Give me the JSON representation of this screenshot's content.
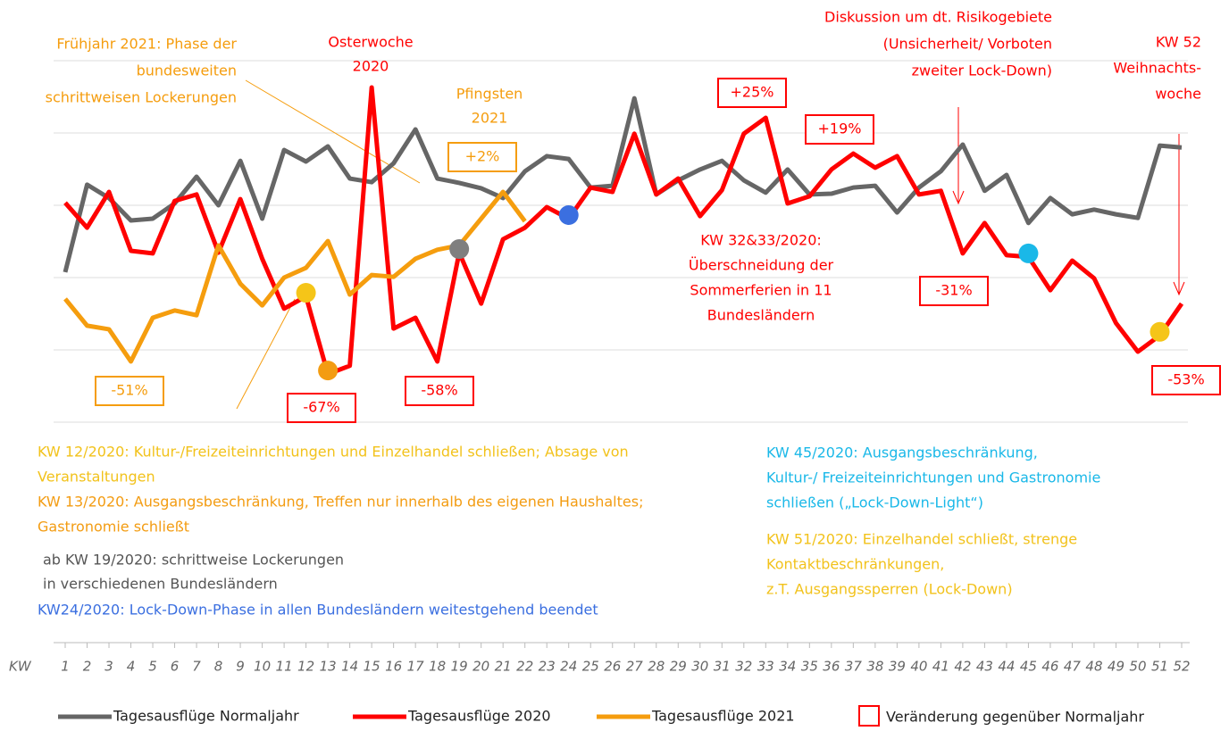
{
  "chart_data": {
    "type": "line",
    "x": [
      1,
      2,
      3,
      4,
      5,
      6,
      7,
      8,
      9,
      10,
      11,
      12,
      13,
      14,
      15,
      16,
      17,
      18,
      19,
      20,
      21,
      22,
      23,
      24,
      25,
      26,
      27,
      28,
      29,
      30,
      31,
      32,
      33,
      34,
      35,
      36,
      37,
      38,
      39,
      40,
      41,
      42,
      43,
      44,
      45,
      46,
      47,
      48,
      49,
      50,
      51,
      52
    ],
    "x_axis_label": "KW",
    "ylim": [
      0,
      100
    ],
    "yticks": [
      0,
      20,
      40,
      60,
      80,
      100
    ],
    "grid": true,
    "series": [
      {
        "name": "Tagesausflüge Normaljahr",
        "color": "#666666",
        "values": [
          41.5,
          65.7,
          62.0,
          55.8,
          56.3,
          60.5,
          67.9,
          60.0,
          72.3,
          56.3,
          75.3,
          72.1,
          76.3,
          67.4,
          66.4,
          71.6,
          81.0,
          67.4,
          66.2,
          64.7,
          62.0,
          69.4,
          73.6,
          72.8,
          64.9,
          65.4,
          89.6,
          63.0,
          66.9,
          69.9,
          72.3,
          66.9,
          63.5,
          69.9,
          63.0,
          63.2,
          64.9,
          65.4,
          58.0,
          64.9,
          69.4,
          76.8,
          64.0,
          68.4,
          55.1,
          62.0,
          57.5,
          58.8,
          57.5,
          56.5,
          76.5,
          76.0
        ]
      },
      {
        "name": "Tagesausflüge  2020",
        "color": "#ff0000",
        "values": [
          60.7,
          53.8,
          63.7,
          47.4,
          46.7,
          61.2,
          63.0,
          46.9,
          61.7,
          45.2,
          31.4,
          34.8,
          13.3,
          15.6,
          92.6,
          25.9,
          28.9,
          16.8,
          46.9,
          32.8,
          50.6,
          53.8,
          59.5,
          56.3,
          64.9,
          63.7,
          79.8,
          63.0,
          67.4,
          57.0,
          64.2,
          79.8,
          84.2,
          60.5,
          62.5,
          69.9,
          74.3,
          70.4,
          73.6,
          63.0,
          64.0,
          46.7,
          55.1,
          46.2,
          45.7,
          36.5,
          44.7,
          39.8,
          27.4,
          19.5,
          24.0,
          32.8
        ]
      },
      {
        "name": "Tagesausflüge  2021",
        "color": "#f59d0e",
        "values": [
          34.1,
          26.7,
          25.7,
          16.8,
          28.9,
          30.9,
          29.6,
          48.9,
          38.3,
          32.3,
          40.0,
          42.7,
          50.1,
          35.3,
          40.7,
          40.2,
          45.2,
          47.7,
          48.9,
          56.3,
          63.7,
          55.6,
          null,
          null,
          null,
          null,
          null,
          null,
          null,
          null,
          null,
          null,
          null,
          null,
          null,
          null,
          null,
          null,
          null,
          null,
          null,
          null,
          null,
          null,
          null,
          null,
          null,
          null,
          null,
          null,
          null,
          null
        ]
      }
    ],
    "highlight_points": [
      {
        "week_index": 11,
        "color": "#f5c518"
      },
      {
        "week_index": 12,
        "color": "#f39c12"
      },
      {
        "week_index": 18,
        "color": "#7f7f7f"
      },
      {
        "week_index": 23,
        "color": "#3b6fe0"
      },
      {
        "week_index": 44,
        "color": "#1ab8e8"
      },
      {
        "week_index": 50,
        "color": "#f5c518"
      }
    ],
    "annotations": [
      {
        "lines": [
          "Frühjahr 2021: Phase der",
          "bundesweiten",
          "schrittweisen Lockerungen"
        ],
        "color": "#f59d0e"
      },
      {
        "lines": [
          "Osterwoche",
          "2020"
        ],
        "color": "#ff0000"
      },
      {
        "lines": [
          "Pfingsten",
          "2021"
        ],
        "color": "#f59d0e"
      },
      {
        "lines": [
          "Diskussion um dt. Risikogebiete",
          "(Unsicherheit/ Vorboten",
          "zweiter Lock-Down)"
        ],
        "color": "#ff0000"
      },
      {
        "lines": [
          "KW 52",
          "Weihnachts-",
          "woche"
        ],
        "color": "#ff0000"
      },
      {
        "lines": [
          "KW 32&33/2020:",
          "Überschneidung der",
          "Sommerferien in  11",
          "Bundesländern"
        ],
        "color": "#ff0000"
      }
    ],
    "change_labels": [
      {
        "text": "+2%",
        "color": "#f59d0e"
      },
      {
        "text": "+25%",
        "color": "#ff0000"
      },
      {
        "text": "+19%",
        "color": "#ff0000"
      },
      {
        "text": "-51%",
        "color": "#f59d0e"
      },
      {
        "text": "-67%",
        "color": "#ff0000"
      },
      {
        "text": "-58%",
        "color": "#ff0000"
      },
      {
        "text": "-31%",
        "color": "#ff0000"
      },
      {
        "text": "-53%",
        "color": "#ff0000"
      }
    ],
    "notes": [
      {
        "lines": [
          "KW 12/2020: Kultur-/Freizeiteinrichtungen und Einzelhandel schließen; Absage von",
          "Veranstaltungen"
        ],
        "color": "#f2c21b"
      },
      {
        "lines": [
          "KW 13/2020: Ausgangsbeschränkung, Treffen nur innerhalb des eigenen Haushaltes;",
          "Gastronomie schließt"
        ],
        "color": "#f39c12"
      },
      {
        "lines": [
          "ab KW 19/2020: schrittweise Lockerungen",
          "in verschiedenen Bundesländern"
        ],
        "color": "#555555"
      },
      {
        "lines": [
          "KW24/2020: Lock-Down-Phase in allen Bundesländern weitestgehend beendet"
        ],
        "color": "#3b6fe0"
      },
      {
        "lines": [
          "KW 45/2020: Ausgangsbeschränkung,",
          "Kultur-/ Freizeiteinrichtungen und Gastronomie",
          "schließen („Lock-Down-Light“)"
        ],
        "color": "#1ab8e8"
      },
      {
        "lines": [
          "KW 51/2020: Einzelhandel schließt, strenge",
          "Kontaktbeschränkungen,",
          "z.T. Ausgangssperren (Lock-Down)"
        ],
        "color": "#f2c21b"
      }
    ],
    "change_legend": "Veränderung gegenüber Normaljahr"
  }
}
